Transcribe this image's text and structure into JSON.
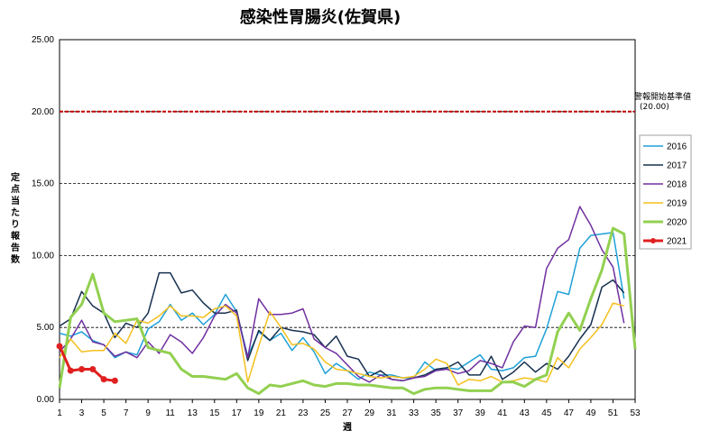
{
  "chart_data": {
    "type": "line",
    "title": "感染性胃腸炎(佐賀県)",
    "xlabel": "週",
    "ylabel": "定点当たり報告数",
    "x_ticks": [
      1,
      3,
      5,
      7,
      9,
      11,
      13,
      15,
      17,
      19,
      21,
      23,
      25,
      27,
      29,
      31,
      33,
      35,
      37,
      39,
      41,
      43,
      45,
      47,
      49,
      51,
      53
    ],
    "y_ticks": [
      "0.00",
      "5.00",
      "10.00",
      "15.00",
      "20.00",
      "25.00"
    ],
    "xlim": [
      1,
      53
    ],
    "ylim": [
      0,
      25
    ],
    "grid": "horizontal dashed",
    "legend_position": "right",
    "threshold": {
      "value": 20.0,
      "label": "警報開始基準値",
      "sublabel": "(20.00)",
      "color": "#c00000"
    },
    "series": [
      {
        "name": "2016",
        "color": "#1ea0d8",
        "width": 1.5,
        "values": [
          4.6,
          4.4,
          4.7,
          4.1,
          3.8,
          2.9,
          3.3,
          3.1,
          4.9,
          5.4,
          6.6,
          5.5,
          6.0,
          5.2,
          5.9,
          7.3,
          6.1,
          3.0,
          4.7,
          4.1,
          4.6,
          3.4,
          4.3,
          3.3,
          1.8,
          2.5,
          2.0,
          1.4,
          1.9,
          1.7,
          1.7,
          1.5,
          1.5,
          2.6,
          2.0,
          2.2,
          2.1,
          2.6,
          3.1,
          2.1,
          2.0,
          2.2,
          2.9,
          3.0,
          4.9,
          7.5,
          7.3,
          10.5,
          11.4,
          11.5,
          11.6,
          7.0,
          null
        ]
      },
      {
        "name": "2017",
        "color": "#16304f",
        "width": 1.5,
        "values": [
          5.1,
          5.6,
          7.5,
          6.5,
          6.0,
          4.3,
          5.3,
          5.0,
          6.0,
          8.8,
          8.8,
          7.4,
          7.6,
          6.7,
          6.0,
          6.0,
          6.2,
          2.7,
          4.8,
          4.1,
          5.0,
          4.8,
          4.7,
          4.5,
          3.6,
          4.4,
          3.0,
          2.8,
          1.6,
          2.0,
          1.4,
          1.3,
          1.5,
          1.7,
          2.1,
          2.2,
          2.6,
          1.7,
          1.7,
          3.0,
          1.4,
          1.9,
          2.6,
          1.9,
          2.5,
          2.1,
          3.0,
          4.2,
          5.2,
          7.8,
          8.3,
          7.4,
          null
        ]
      },
      {
        "name": "2018",
        "color": "#7030a0",
        "width": 1.5,
        "values": [
          3.3,
          4.2,
          5.5,
          4.0,
          3.8,
          3.0,
          3.3,
          2.9,
          4.0,
          3.2,
          4.5,
          4.0,
          3.2,
          4.3,
          5.8,
          6.6,
          6.0,
          2.9,
          7.0,
          5.9,
          5.9,
          6.0,
          6.3,
          4.2,
          3.6,
          3.2,
          2.4,
          1.6,
          1.2,
          1.7,
          1.4,
          1.3,
          1.5,
          1.6,
          2.0,
          2.1,
          1.8,
          2.0,
          2.7,
          2.5,
          2.2,
          4.0,
          5.1,
          5.0,
          9.1,
          10.5,
          11.1,
          13.4,
          12.1,
          10.4,
          9.2,
          5.3,
          null
        ]
      },
      {
        "name": "2019",
        "color": "#f4c01e",
        "width": 1.5,
        "values": [
          2.9,
          4.2,
          3.3,
          3.4,
          3.4,
          4.6,
          3.9,
          5.5,
          5.3,
          5.8,
          6.5,
          5.8,
          5.8,
          5.7,
          6.3,
          6.5,
          5.8,
          1.2,
          3.7,
          6.1,
          5.0,
          3.8,
          3.9,
          3.5,
          2.6,
          2.1,
          2.0,
          1.8,
          1.6,
          1.5,
          1.6,
          1.5,
          1.6,
          2.1,
          2.8,
          2.5,
          1.0,
          1.4,
          1.3,
          1.6,
          1.2,
          1.3,
          1.5,
          1.4,
          1.2,
          2.9,
          2.2,
          3.5,
          4.3,
          5.2,
          6.7,
          6.5,
          null
        ]
      },
      {
        "name": "2020",
        "color": "#92d050",
        "width": 3,
        "values": [
          0.8,
          5.7,
          6.6,
          8.7,
          6.0,
          5.4,
          5.5,
          5.6,
          3.6,
          3.4,
          3.2,
          2.1,
          1.6,
          1.6,
          1.5,
          1.4,
          1.8,
          0.8,
          0.4,
          1.0,
          0.9,
          1.1,
          1.3,
          1.0,
          0.9,
          1.1,
          1.1,
          1.0,
          1.0,
          0.9,
          0.8,
          0.8,
          0.4,
          0.7,
          0.8,
          0.8,
          0.7,
          0.6,
          0.6,
          0.6,
          1.2,
          1.2,
          0.9,
          1.4,
          1.7,
          4.7,
          6.0,
          4.8,
          7.0,
          9.0,
          11.9,
          11.5,
          3.5
        ]
      },
      {
        "name": "2021",
        "color": "#e02020",
        "width": 3,
        "markers": true,
        "values": [
          3.7,
          2.0,
          2.1,
          2.1,
          1.4,
          1.3
        ]
      }
    ]
  }
}
